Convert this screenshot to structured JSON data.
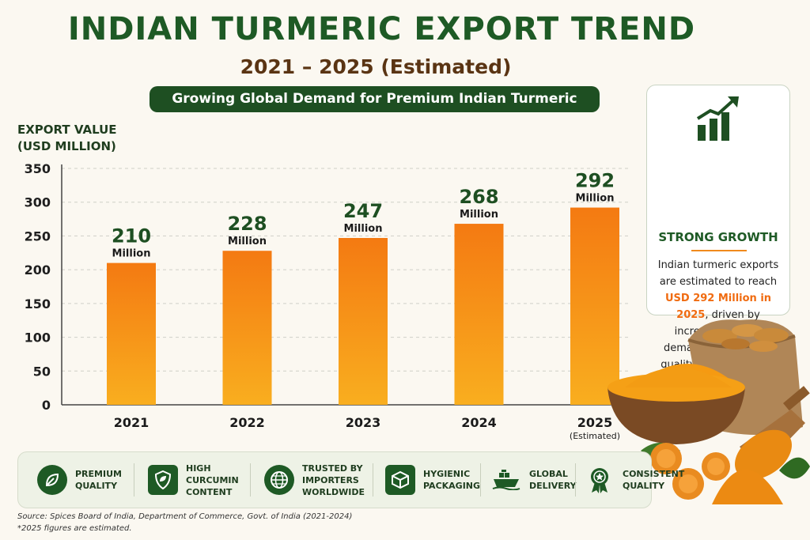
{
  "header": {
    "title": "INDIAN TURMERIC EXPORT TREND",
    "subtitle": "2021 – 2025 (Estimated)",
    "banner": "Growing Global Demand for Premium Indian Turmeric"
  },
  "chart_data": {
    "type": "bar",
    "ylabel_line1": "EXPORT VALUE",
    "ylabel_line2": "(USD MILLION)",
    "categories": [
      "2021",
      "2022",
      "2023",
      "2024",
      "2025"
    ],
    "category_notes": [
      "",
      "",
      "",
      "",
      "(Estimated)"
    ],
    "values": [
      210,
      228,
      247,
      268,
      292
    ],
    "value_unit_label": "Million",
    "ylim": [
      0,
      350
    ],
    "yticks": [
      0,
      50,
      100,
      150,
      200,
      250,
      300,
      350
    ],
    "grid": true,
    "colors": {
      "bar_top": "#f47a12",
      "bar_bottom": "#f9ae1f",
      "label": "#1e4f22"
    }
  },
  "growth_card": {
    "title": "STRONG GROWTH",
    "text_before": "Indian turmeric exports are estimated to reach",
    "highlight": "USD 292 Million in 2025",
    "text_after": ", driven by increasing global demand for premium quality, high curcumin content, and natural ingredients."
  },
  "features": [
    {
      "label": "PREMIUM\nQUALITY",
      "icon": "leaf-icon"
    },
    {
      "label": "HIGH\nCURCUMIN\nCONTENT",
      "icon": "shield-leaf-icon"
    },
    {
      "label": "TRUSTED BY\nIMPORTERS\nWORLDWIDE",
      "icon": "globe-icon"
    },
    {
      "label": "HYGIENIC\nPACKAGING",
      "icon": "package-icon"
    },
    {
      "label": "GLOBAL\nDELIVERY",
      "icon": "ship-icon"
    },
    {
      "label": "CONSISTENT\nQUALITY",
      "icon": "award-icon"
    }
  ],
  "footer": {
    "source": "Source: Spices Board of India, Department of Commerce, Govt. of India (2021-2024)",
    "note": "*2025 figures are estimated."
  },
  "colors": {
    "brand_green": "#1e5a25",
    "accent_orange": "#f06b10"
  }
}
